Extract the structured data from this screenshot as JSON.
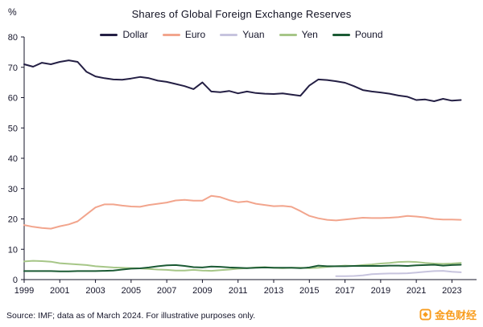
{
  "title": "Shares of Global Foreign Exchange Reserves",
  "y_unit_label": "%",
  "source_note": "Source: IMF; data as of March 2024. For illustrative purposes only.",
  "logo": {
    "text": "金色财经",
    "color": "#F89C1C"
  },
  "chart_data": {
    "type": "line",
    "title": "Shares of Global Foreign Exchange Reserves",
    "xlabel": "",
    "ylabel": "%",
    "xlim": [
      1999,
      2024.2
    ],
    "ylim": [
      0,
      80
    ],
    "yticks": [
      0,
      10,
      20,
      30,
      40,
      50,
      60,
      70,
      80
    ],
    "xticks": [
      1999,
      2001,
      2003,
      2005,
      2007,
      2009,
      2011,
      2013,
      2015,
      2017,
      2019,
      2021,
      2023
    ],
    "grid": false,
    "legend_position": "top",
    "x": [
      1999,
      1999.5,
      2000,
      2000.5,
      2001,
      2001.5,
      2002,
      2002.5,
      2003,
      2003.5,
      2004,
      2004.5,
      2005,
      2005.5,
      2006,
      2006.5,
      2007,
      2007.5,
      2008,
      2008.5,
      2009,
      2009.5,
      2010,
      2010.5,
      2011,
      2011.5,
      2012,
      2012.5,
      2013,
      2013.5,
      2014,
      2014.5,
      2015,
      2015.5,
      2016,
      2016.5,
      2017,
      2017.5,
      2018,
      2018.5,
      2019,
      2019.5,
      2020,
      2020.5,
      2021,
      2021.5,
      2022,
      2022.5,
      2023,
      2023.5
    ],
    "series": [
      {
        "name": "Dollar",
        "color": "#241f44",
        "width": 2,
        "values": [
          71.0,
          70.2,
          71.5,
          71.0,
          71.8,
          72.3,
          71.8,
          68.5,
          67.0,
          66.4,
          66.0,
          65.9,
          66.3,
          66.8,
          66.4,
          65.6,
          65.2,
          64.5,
          63.8,
          62.8,
          65.0,
          62.0,
          61.8,
          62.2,
          61.4,
          62.0,
          61.5,
          61.3,
          61.2,
          61.4,
          61.0,
          60.6,
          64.0,
          66.0,
          65.8,
          65.4,
          64.9,
          63.8,
          62.5,
          62.0,
          61.7,
          61.3,
          60.7,
          60.3,
          59.2,
          59.4,
          58.8,
          59.6,
          59.0,
          59.2
        ]
      },
      {
        "name": "Euro",
        "color": "#f2a58d",
        "width": 2,
        "values": [
          18.0,
          17.4,
          17.0,
          16.8,
          17.6,
          18.2,
          19.2,
          21.5,
          23.8,
          24.8,
          24.8,
          24.4,
          24.1,
          24.0,
          24.6,
          25.0,
          25.4,
          26.1,
          26.3,
          26.0,
          26.0,
          27.6,
          27.2,
          26.2,
          25.5,
          25.8,
          25.0,
          24.6,
          24.2,
          24.3,
          24.0,
          22.6,
          21.0,
          20.2,
          19.7,
          19.5,
          19.8,
          20.1,
          20.4,
          20.3,
          20.3,
          20.4,
          20.6,
          21.0,
          20.8,
          20.5,
          20.0,
          19.8,
          19.8,
          19.7
        ]
      },
      {
        "name": "Yuan",
        "color": "#c7c4de",
        "width": 2,
        "values": [
          null,
          null,
          null,
          null,
          null,
          null,
          null,
          null,
          null,
          null,
          null,
          null,
          null,
          null,
          null,
          null,
          null,
          null,
          null,
          null,
          null,
          null,
          null,
          null,
          null,
          null,
          null,
          null,
          null,
          null,
          null,
          null,
          null,
          null,
          null,
          1.1,
          1.1,
          1.2,
          1.4,
          1.8,
          1.9,
          2.0,
          2.0,
          2.1,
          2.3,
          2.6,
          2.8,
          2.9,
          2.6,
          2.4
        ]
      },
      {
        "name": "Yen",
        "color": "#a6c687",
        "width": 2,
        "values": [
          6.0,
          6.2,
          6.1,
          5.9,
          5.4,
          5.2,
          5.0,
          4.8,
          4.4,
          4.2,
          4.0,
          3.9,
          3.8,
          3.7,
          3.5,
          3.3,
          3.2,
          3.0,
          3.0,
          3.2,
          3.0,
          2.9,
          3.1,
          3.3,
          3.6,
          3.8,
          4.0,
          4.1,
          3.9,
          3.8,
          3.9,
          3.9,
          3.8,
          3.9,
          4.2,
          4.4,
          4.6,
          4.5,
          4.8,
          5.0,
          5.3,
          5.5,
          5.8,
          5.9,
          5.8,
          5.5,
          5.3,
          5.2,
          5.3,
          5.5
        ]
      },
      {
        "name": "Pound",
        "color": "#1b5a34",
        "width": 2,
        "values": [
          2.8,
          2.8,
          2.8,
          2.8,
          2.7,
          2.7,
          2.8,
          2.8,
          2.8,
          2.9,
          3.0,
          3.3,
          3.6,
          3.7,
          4.0,
          4.4,
          4.7,
          4.8,
          4.5,
          4.1,
          4.0,
          4.3,
          4.2,
          4.0,
          3.9,
          3.8,
          3.9,
          4.0,
          3.9,
          3.9,
          3.9,
          3.8,
          4.0,
          4.6,
          4.4,
          4.4,
          4.4,
          4.5,
          4.5,
          4.5,
          4.5,
          4.6,
          4.6,
          4.5,
          4.7,
          4.8,
          4.9,
          4.6,
          4.8,
          4.9
        ]
      }
    ]
  }
}
